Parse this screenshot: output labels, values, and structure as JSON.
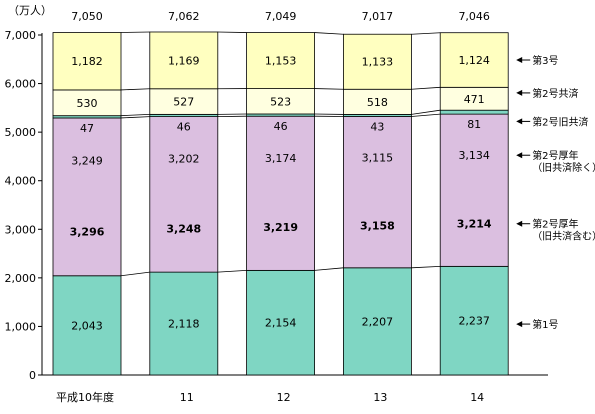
{
  "chart_data": {
    "type": "bar",
    "stacked": true,
    "unit_label": "（万人）",
    "categories": [
      "平成10年度",
      "11",
      "12",
      "13",
      "14"
    ],
    "totals": [
      "7,050",
      "7,062",
      "7,049",
      "7,017",
      "7,046"
    ],
    "ylim": [
      0,
      7000
    ],
    "yticks": [
      "0",
      "1,000",
      "2,000",
      "3,000",
      "4,000",
      "5,000",
      "6,000",
      "7,000"
    ],
    "grid": false,
    "legend": "right-side arrow labels",
    "series": [
      {
        "name": "第1号",
        "color": "#7fd6c3",
        "values": [
          2043,
          2118,
          2154,
          2207,
          2237
        ],
        "labels": [
          "2,043",
          "2,118",
          "2,154",
          "2,207",
          "2,237"
        ],
        "bold": false
      },
      {
        "name": "第2号厚年（旧共済除く）",
        "color": "#dbbfe0",
        "values": [
          3249,
          3202,
          3174,
          3115,
          3134
        ],
        "labels": [
          "3,249",
          "3,202",
          "3,174",
          "3,115",
          "3,134"
        ],
        "bold": false
      },
      {
        "name": "第2号旧共済",
        "color": "#7fd6c3",
        "values": [
          47,
          46,
          46,
          43,
          81
        ],
        "labels": [
          "47",
          "46",
          "46",
          "43",
          "81"
        ],
        "bold": false
      },
      {
        "name": "第2号共済",
        "color": "#ffffe0",
        "values": [
          530,
          527,
          523,
          518,
          471
        ],
        "labels": [
          "530",
          "527",
          "523",
          "518",
          "471"
        ],
        "bold": false
      },
      {
        "name": "第3号",
        "color": "#ffffc0",
        "values": [
          1182,
          1169,
          1153,
          1133,
          1124
        ],
        "labels": [
          "1,182",
          "1,169",
          "1,153",
          "1,133",
          "1,124"
        ],
        "bold": false
      }
    ],
    "combined": {
      "name": "第2号厚年（旧共済含む）",
      "values": [
        3296,
        3248,
        3219,
        3158,
        3214
      ],
      "labels": [
        "3,296",
        "3,248",
        "3,219",
        "3,158",
        "3,214"
      ]
    },
    "legend_labels": [
      {
        "lines": [
          "第3号"
        ],
        "series_index": 4
      },
      {
        "lines": [
          "第2号共済"
        ],
        "series_index": 3
      },
      {
        "lines": [
          "第2号旧共済"
        ],
        "series_index": 2
      },
      {
        "lines": [
          "第2号厚年",
          "（旧共済除く）"
        ],
        "series_index": 1
      },
      {
        "lines": [
          "第2号厚年",
          "（旧共済含む）"
        ],
        "series_index": -1
      },
      {
        "lines": [
          "第1号"
        ],
        "series_index": 0
      }
    ]
  }
}
